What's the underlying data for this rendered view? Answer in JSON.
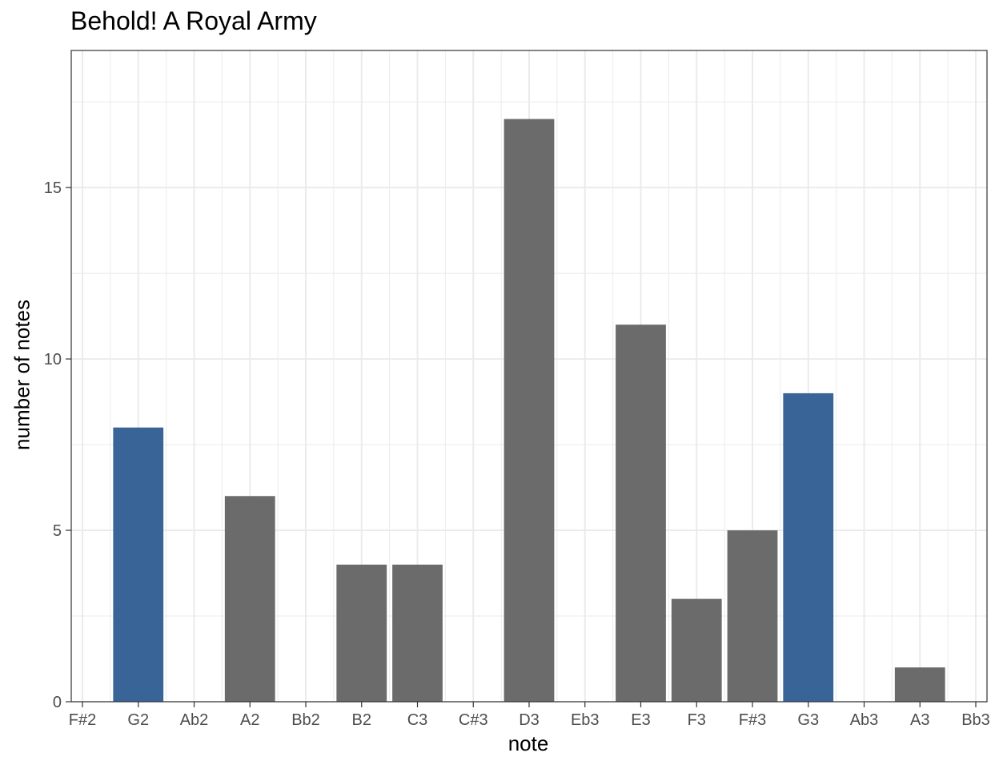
{
  "chart_data": {
    "type": "bar",
    "title": "Behold! A Royal Army",
    "xlabel": "note",
    "ylabel": "number of notes",
    "categories": [
      "F#2",
      "G2",
      "Ab2",
      "A2",
      "Bb2",
      "B2",
      "C3",
      "C#3",
      "D3",
      "Eb3",
      "E3",
      "F3",
      "F#3",
      "G3",
      "Ab3",
      "A3",
      "Bb3"
    ],
    "values": [
      0,
      8,
      0,
      6,
      0,
      4,
      4,
      0,
      17,
      0,
      11,
      3,
      5,
      9,
      0,
      1,
      0
    ],
    "highlighted": [
      "G2",
      "G3"
    ],
    "colors": {
      "default": "#6b6b6b",
      "highlight": "#386498",
      "grid": "#ebebeb",
      "axis": "#333333"
    },
    "y_ticks": [
      0,
      5,
      10,
      15
    ],
    "ylim": [
      0,
      19
    ],
    "grid": true,
    "legend": "none"
  }
}
